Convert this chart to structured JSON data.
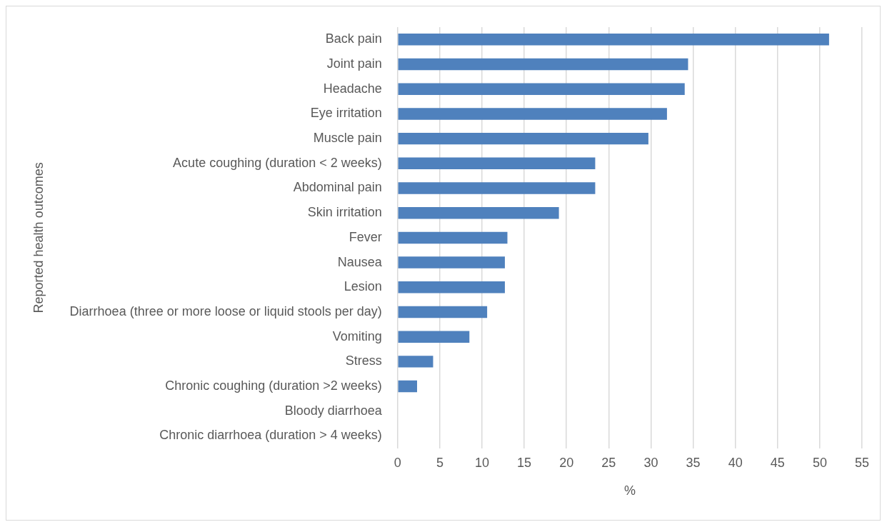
{
  "chart_data": {
    "type": "bar",
    "orientation": "horizontal",
    "xlabel": "%",
    "ylabel": "Reported health outcomes",
    "categories": [
      "Back pain",
      "Joint pain",
      "Headache",
      "Eye irritation",
      "Muscle pain",
      "Acute coughing (duration < 2 weeks)",
      "Abdominal pain",
      "Skin irritation",
      "Fever",
      "Nausea",
      "Lesion",
      "Diarrhoea (three or more loose or liquid stools per day)",
      "Vomiting",
      "Stress",
      "Chronic coughing (duration >2 weeks)",
      "Bloody diarrhoea",
      "Chronic diarrhoea (duration > 4 weeks)"
    ],
    "values": [
      51.1,
      34.4,
      34.0,
      31.9,
      29.7,
      23.4,
      23.4,
      19.1,
      13.0,
      12.7,
      12.7,
      10.6,
      8.5,
      4.2,
      2.3,
      0,
      0
    ],
    "color": "#4f81bd",
    "xlim": [
      0,
      55
    ],
    "xticks": [
      0,
      5,
      10,
      15,
      20,
      25,
      30,
      35,
      40,
      45,
      50,
      55
    ],
    "grid": "x",
    "legend": false
  }
}
